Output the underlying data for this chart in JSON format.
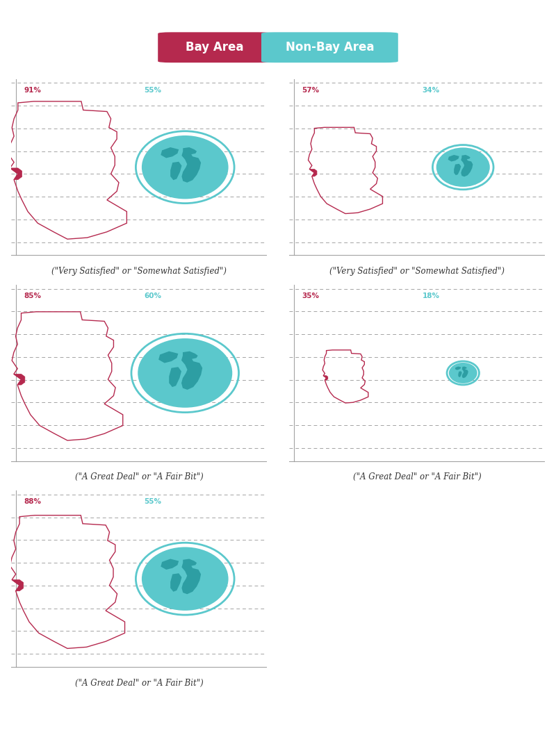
{
  "background_color": "#ffffff",
  "panel_bg": "#ffffff",
  "bay_color": "#b5294e",
  "globe_color": "#5bc8cc",
  "grid_color": "#999999",
  "text_color": "#333333",
  "legend_bay_color": "#b5294e",
  "legend_non_color": "#5bc8cc",
  "legend_bay_label": "Bay Area",
  "legend_non_label": "Non-Bay Area",
  "panels": [
    {
      "row": 0,
      "col": 0,
      "bay_pct": 91,
      "non_pct": 55,
      "bay_label": "91%",
      "non_label": "55%",
      "caption": "(\"Very Satisfied\" or \"Somewhat Satisfied\")"
    },
    {
      "row": 0,
      "col": 1,
      "bay_pct": 57,
      "non_pct": 34,
      "bay_label": "57%",
      "non_label": "34%",
      "caption": "(\"Very Satisfied\" or \"Somewhat Satisfied\")"
    },
    {
      "row": 1,
      "col": 0,
      "bay_pct": 85,
      "non_pct": 60,
      "bay_label": "85%",
      "non_label": "60%",
      "caption": "(\"A Great Deal\" or \"A Fair Bit\")"
    },
    {
      "row": 1,
      "col": 1,
      "bay_pct": 35,
      "non_pct": 18,
      "bay_label": "35%",
      "non_label": "18%",
      "caption": "(\"A Great Deal\" or \"A Fair Bit\")"
    },
    {
      "row": 2,
      "col": 0,
      "bay_pct": 88,
      "non_pct": 55,
      "bay_label": "88%",
      "non_label": "55%",
      "caption": "(\"A Great Deal\" or \"A Fair Bit\")"
    }
  ]
}
